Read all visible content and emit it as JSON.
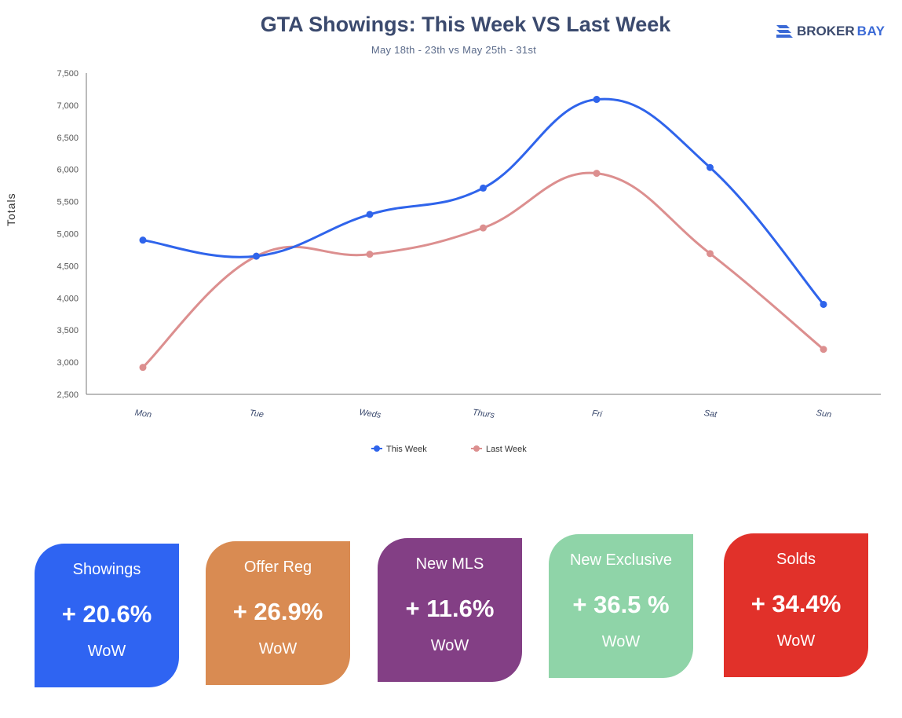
{
  "chart_data": {
    "type": "line",
    "title": "GTA Showings: This Week VS Last Week",
    "subtitle": "May 18th - 23th vs May 25th - 31st",
    "ylabel": "Totals",
    "xlabel": "",
    "ylim": [
      2500,
      7500
    ],
    "yticks": [
      2500,
      3000,
      3500,
      4000,
      4500,
      5000,
      5500,
      6000,
      6500,
      7000,
      7500
    ],
    "ytick_labels": [
      "2,500",
      "3,000",
      "3,500",
      "4,000",
      "4,500",
      "5,000",
      "5,500",
      "6,000",
      "6,500",
      "7,000",
      "7,500"
    ],
    "categories": [
      "Mon",
      "Tue",
      "Weds",
      "Thurs",
      "Fri",
      "Sat",
      "Sun"
    ],
    "legend_position": "bottom-center",
    "grid": false,
    "series": [
      {
        "name": "This Week",
        "color": "#2f64eb",
        "values": [
          4900,
          4650,
          5300,
          5710,
          7090,
          6030,
          3900
        ]
      },
      {
        "name": "Last Week",
        "color": "#dc8f8f",
        "values": [
          2920,
          4650,
          4680,
          5090,
          5940,
          4690,
          3200
        ]
      }
    ]
  },
  "logo": {
    "part1": "BROKER",
    "part2": "BAY",
    "color": "#3b6ad6"
  },
  "cards": [
    {
      "name": "Showings",
      "value": "+ 20.6%",
      "period": "WoW",
      "color": "#2f64f2"
    },
    {
      "name": "Offer Reg",
      "value": "+ 26.9%",
      "period": "WoW",
      "color": "#d98b52"
    },
    {
      "name": "New MLS",
      "value": "+ 11.6%",
      "period": "WoW",
      "color": "#833f85"
    },
    {
      "name": "New Exclusive",
      "value": "+ 36.5 %",
      "period": "WoW",
      "color": "#8fd4a8"
    },
    {
      "name": "Solds",
      "value": "+ 34.4%",
      "period": "WoW",
      "color": "#e1312a"
    }
  ]
}
